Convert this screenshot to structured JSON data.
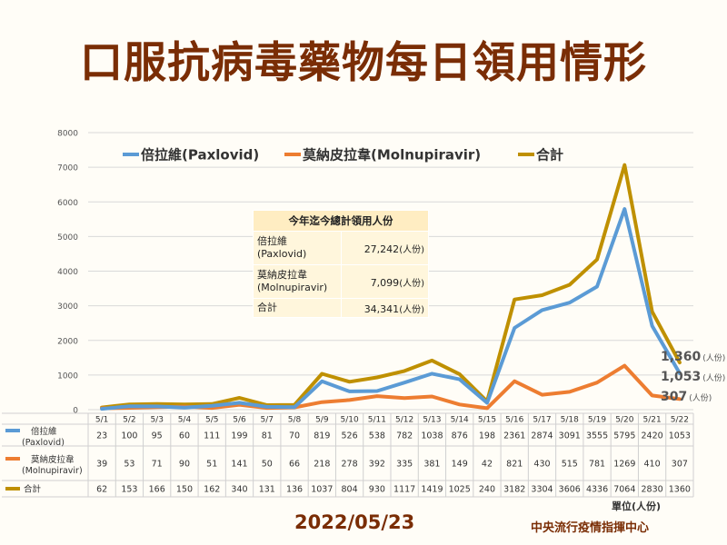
{
  "title": "口服抗病毒藥物每日領用情形",
  "date": "2022/05/23",
  "organization": "中央流行疫情指揮中心",
  "unit_label": "單位(人份)",
  "summary": {
    "header": "今年迄今總計領用人份",
    "rows": [
      {
        "label_line1": "倍拉維",
        "label_line2": "(Paxlovid)",
        "value": "27,242",
        "unit": "(人份)"
      },
      {
        "label_line1": "莫納皮拉韋",
        "label_line2": "(Molnupiravir)",
        "value": "7,099",
        "unit": "(人份)"
      },
      {
        "label_line1": "合計",
        "label_line2": "",
        "value": "34,341",
        "unit": "(人份)"
      }
    ]
  },
  "end_labels": [
    {
      "value": "1,360",
      "unit": "(人份)"
    },
    {
      "value": "1,053",
      "unit": "(人份)"
    },
    {
      "value": "307",
      "unit": "(人份)"
    }
  ],
  "chart_data": {
    "type": "line",
    "title": "口服抗病毒藥物每日領用情形",
    "ylim": [
      0,
      8000
    ],
    "yticks": [
      0,
      1000,
      2000,
      3000,
      4000,
      5000,
      6000,
      7000,
      8000
    ],
    "grid": true,
    "legend_position": "top",
    "categories": [
      "5/1",
      "5/2",
      "5/3",
      "5/4",
      "5/5",
      "5/6",
      "5/7",
      "5/8",
      "5/9",
      "5/10",
      "5/11",
      "5/12",
      "5/13",
      "5/14",
      "5/15",
      "5/16",
      "5/17",
      "5/18",
      "5/19",
      "5/20",
      "5/21",
      "5/22"
    ],
    "series": [
      {
        "name": "倍拉維(Paxlovid)",
        "table_line1": "倍拉維",
        "table_line2": "(Paxlovid)",
        "color": "#5b9bd5",
        "values": [
          23,
          100,
          95,
          60,
          111,
          199,
          81,
          70,
          819,
          526,
          538,
          782,
          1038,
          876,
          198,
          2361,
          2874,
          3091,
          3555,
          5795,
          2420,
          1053
        ]
      },
      {
        "name": "莫納皮拉韋(Molnupiravir)",
        "table_line1": "莫納皮拉韋",
        "table_line2": "(Molnupiravir)",
        "color": "#ed7d31",
        "values": [
          39,
          53,
          71,
          90,
          51,
          141,
          50,
          66,
          218,
          278,
          392,
          335,
          381,
          149,
          42,
          821,
          430,
          515,
          781,
          1269,
          410,
          307
        ]
      },
      {
        "name": "合計",
        "table_line1": "合計",
        "table_line2": "",
        "color": "#bf9000",
        "values": [
          62,
          153,
          166,
          150,
          162,
          340,
          131,
          136,
          1037,
          804,
          930,
          1117,
          1419,
          1025,
          240,
          3182,
          3304,
          3606,
          4336,
          7064,
          2830,
          1360
        ]
      }
    ]
  }
}
